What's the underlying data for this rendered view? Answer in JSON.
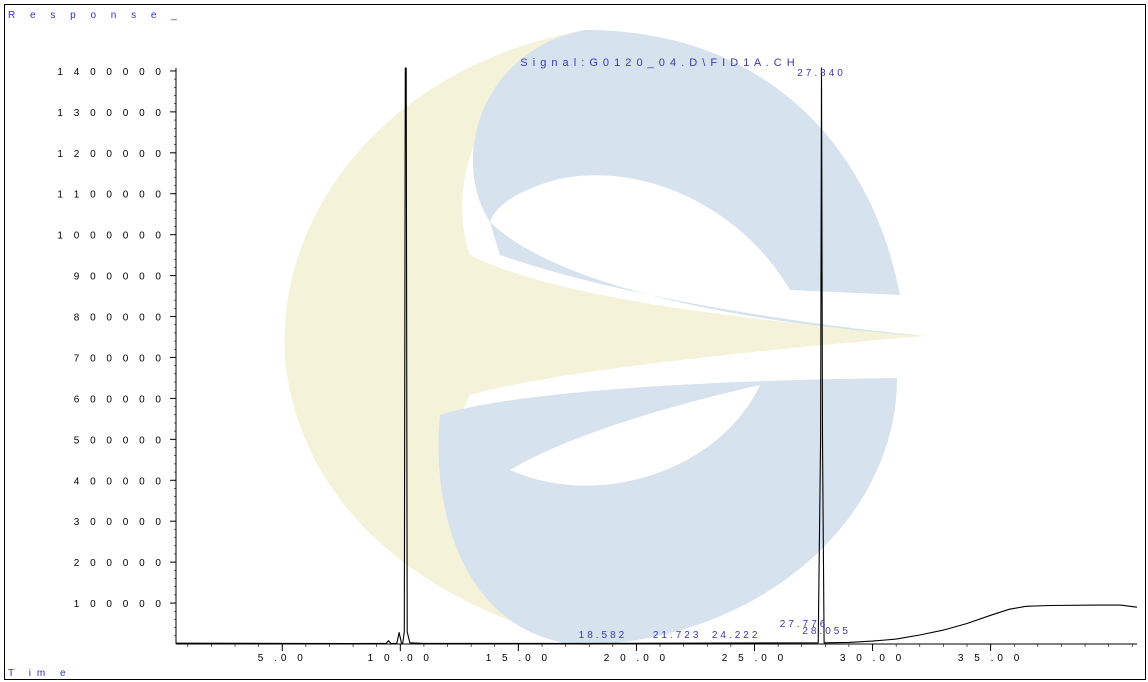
{
  "header": {
    "response_label": "R e s p o n s e _",
    "time_label": "T im  e"
  },
  "signal_title": "S i g n a l : G 0 1 2 0 _ 0 4 . D \\ F I D 1 A . C H",
  "colors": {
    "trace": "#000000",
    "label": "#3a3aaa",
    "axis": "#000000",
    "watermark_blue": "#d6e2ee",
    "watermark_yellow": "#f4f3d9"
  },
  "chart_data": {
    "type": "line",
    "title": "",
    "xlabel": "Time",
    "ylabel": "Response_",
    "xlim": [
      0.5,
      41.2
    ],
    "ylim": [
      0,
      1500000
    ],
    "x_ticks": [
      5,
      10,
      15,
      20,
      25,
      30,
      35
    ],
    "x_tick_labels": [
      "5 .0 0",
      "1 0 .0 0",
      "1 5 .0 0",
      "2 0 .0 0",
      "2 5 .0 0",
      "3 0 .0 0",
      "3 5 .0 0"
    ],
    "y_ticks": [
      100000,
      200000,
      300000,
      400000,
      500000,
      600000,
      700000,
      800000,
      900000,
      1000000,
      1100000,
      1200000,
      1300000,
      1400000
    ],
    "y_tick_labels": [
      "1 0 0 0 0 0",
      "2 0 0 0 0 0",
      "3 0 0 0 0 0",
      "4 0 0 0 0 0",
      "5 0 0 0 0 0",
      "6 0 0 0 0 0",
      "7 0 0 0 0 0",
      "8 0 0 0 0 0",
      "9 0 0 0 0 0",
      "1 0 0 0 0 0 0",
      "1 1 0 0 0 0 0",
      "1 2 0 0 0 0 0",
      "1 3 0 0 0 0 0",
      "1 4 0 0 0 0 0"
    ],
    "series": [
      {
        "values": [
          [
            0.5,
            2000
          ],
          [
            5,
            1500
          ],
          [
            8,
            1000
          ],
          [
            9.4,
            1500
          ],
          [
            9.5,
            8000
          ],
          [
            9.6,
            1500
          ],
          [
            9.85,
            1500
          ],
          [
            9.95,
            28000
          ],
          [
            10.05,
            2000
          ],
          [
            10.1,
            1500
          ],
          [
            10.17,
            30000
          ],
          [
            10.21,
            1500000
          ],
          [
            10.25,
            1500000
          ],
          [
            10.29,
            30000
          ],
          [
            10.4,
            3000
          ],
          [
            11,
            1500
          ],
          [
            18,
            1500
          ],
          [
            27.7,
            3000
          ],
          [
            27.8,
            500000
          ],
          [
            27.84,
            1440000
          ],
          [
            27.88,
            500000
          ],
          [
            27.95,
            3000
          ],
          [
            29,
            4000
          ],
          [
            30,
            7000
          ],
          [
            31,
            12000
          ],
          [
            32,
            22000
          ],
          [
            33,
            34000
          ],
          [
            34,
            50000
          ],
          [
            35,
            70000
          ],
          [
            35.8,
            85000
          ],
          [
            36.5,
            92000
          ],
          [
            37.5,
            94000
          ],
          [
            39.5,
            95000
          ],
          [
            40.5,
            95000
          ],
          [
            41.2,
            90000
          ]
        ]
      }
    ],
    "peak_labels": [
      {
        "text": "27.840",
        "rt": 27.84
      },
      {
        "text": "18.582",
        "rt": 18.582
      },
      {
        "text": "21.723",
        "rt": 21.723
      },
      {
        "text": "24.222",
        "rt": 24.222
      },
      {
        "text": "27.776",
        "rt": 27.776
      },
      {
        "text": "28.055",
        "rt": 28.055
      }
    ],
    "grid": false,
    "legend": "none"
  }
}
